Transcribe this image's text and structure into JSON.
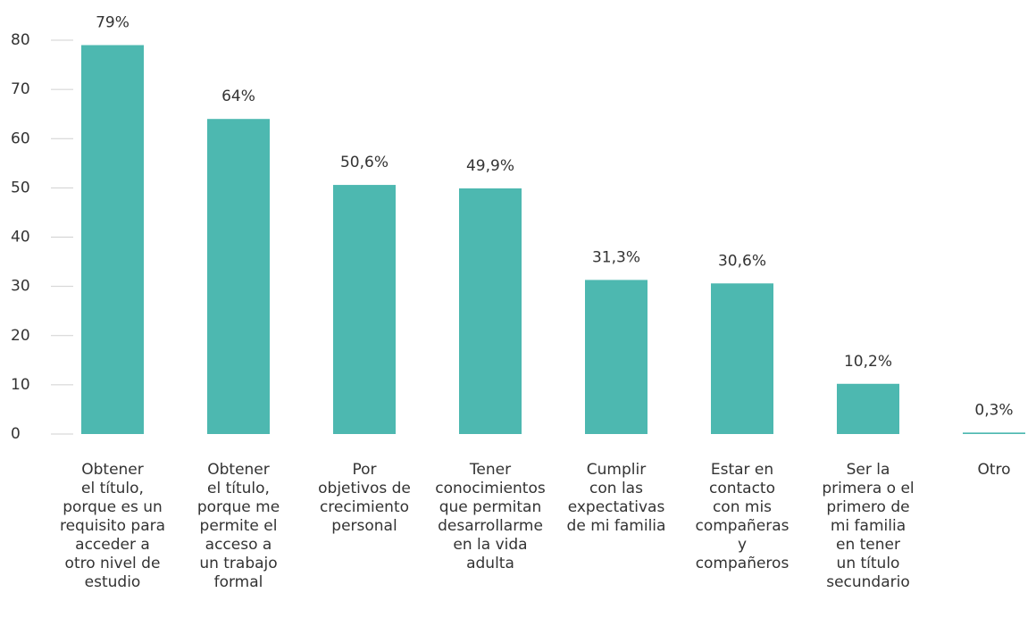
{
  "chart_data": {
    "type": "bar",
    "categories": [
      "Obtener\nel título,\nporque es un\nrequisito para\nacceder a\notro nivel de\nestudio",
      "Obtener\nel título,\nporque me\npermite el\nacceso a\nun trabajo\nformal",
      "Por\nobjetivos de\ncrecimiento\npersonal",
      "Tener\nconocimientos\nque permitan\ndesarrollarme\nen la vida\nadulta",
      "Cumplir\ncon las\nexpectativas\nde mi familia",
      "Estar en\ncontacto\ncon mis\ncompañeras\ny\ncompañeros",
      "Ser la\nprimera o el\nprimero de\nmi familia\nen tener\nun título\nsecundario",
      "Otro"
    ],
    "values": [
      79,
      64,
      50.6,
      49.9,
      31.3,
      30.6,
      10.2,
      0.3
    ],
    "value_labels": [
      "79%",
      "64%",
      "50,6%",
      "49,9%",
      "31,3%",
      "30,6%",
      "10,2%",
      "0,3%"
    ],
    "color": "#4db8b0",
    "ylim": [
      0,
      80
    ],
    "yticks": [
      0,
      10,
      20,
      30,
      40,
      50,
      60,
      70,
      80
    ],
    "grid": false
  }
}
